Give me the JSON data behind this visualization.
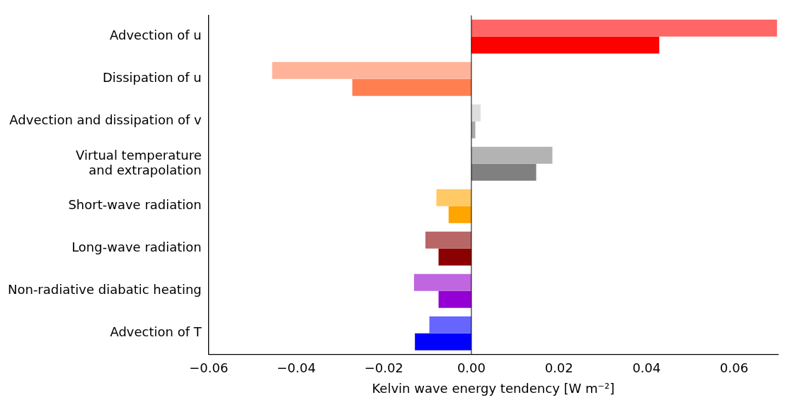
{
  "chart_data": {
    "type": "bar",
    "orientation": "horizontal",
    "xlabel": "Kelvin wave energy tendency [W m⁻²]",
    "categories": [
      "Advection of u",
      "Dissipation of u",
      "Advection and dissipation of v",
      "Virtual temperature\nand extrapolation",
      "Short-wave radiation",
      "Long-wave radiation",
      "Non-radiative diabatic heating",
      "Advection of T"
    ],
    "series": [
      {
        "colors": [
          "#ff6666",
          "#ffb399",
          "#dddddd",
          "#b3b3b3",
          "#ffc966",
          "#b86666",
          "#bf66e0",
          "#6666ff"
        ],
        "values": [
          0.0698,
          -0.0455,
          0.0021,
          0.0185,
          -0.008,
          -0.0105,
          -0.0131,
          -0.0096
        ]
      },
      {
        "colors": [
          "#ff0000",
          "#ff7f50",
          "#aaaaaa",
          "#808080",
          "#ffa500",
          "#8b0000",
          "#9400d3",
          "#0000ff"
        ],
        "values": [
          0.0429,
          -0.0272,
          0.0009,
          0.0148,
          -0.0052,
          -0.0075,
          -0.0075,
          -0.0129
        ]
      }
    ],
    "xlim": [
      -0.06,
      0.07
    ],
    "xticks": [
      {
        "value": -0.06,
        "label": "−0.06"
      },
      {
        "value": -0.04,
        "label": "−0.04"
      },
      {
        "value": -0.02,
        "label": "−0.02"
      },
      {
        "value": 0,
        "label": "0.00"
      },
      {
        "value": 0.02,
        "label": "0.02"
      },
      {
        "value": 0.04,
        "label": "0.04"
      },
      {
        "value": 0.06,
        "label": "0.06"
      }
    ],
    "ref_lines": [
      {
        "axis": "x",
        "value": 0,
        "color": "#000000"
      }
    ],
    "grid": false,
    "legend": false
  }
}
